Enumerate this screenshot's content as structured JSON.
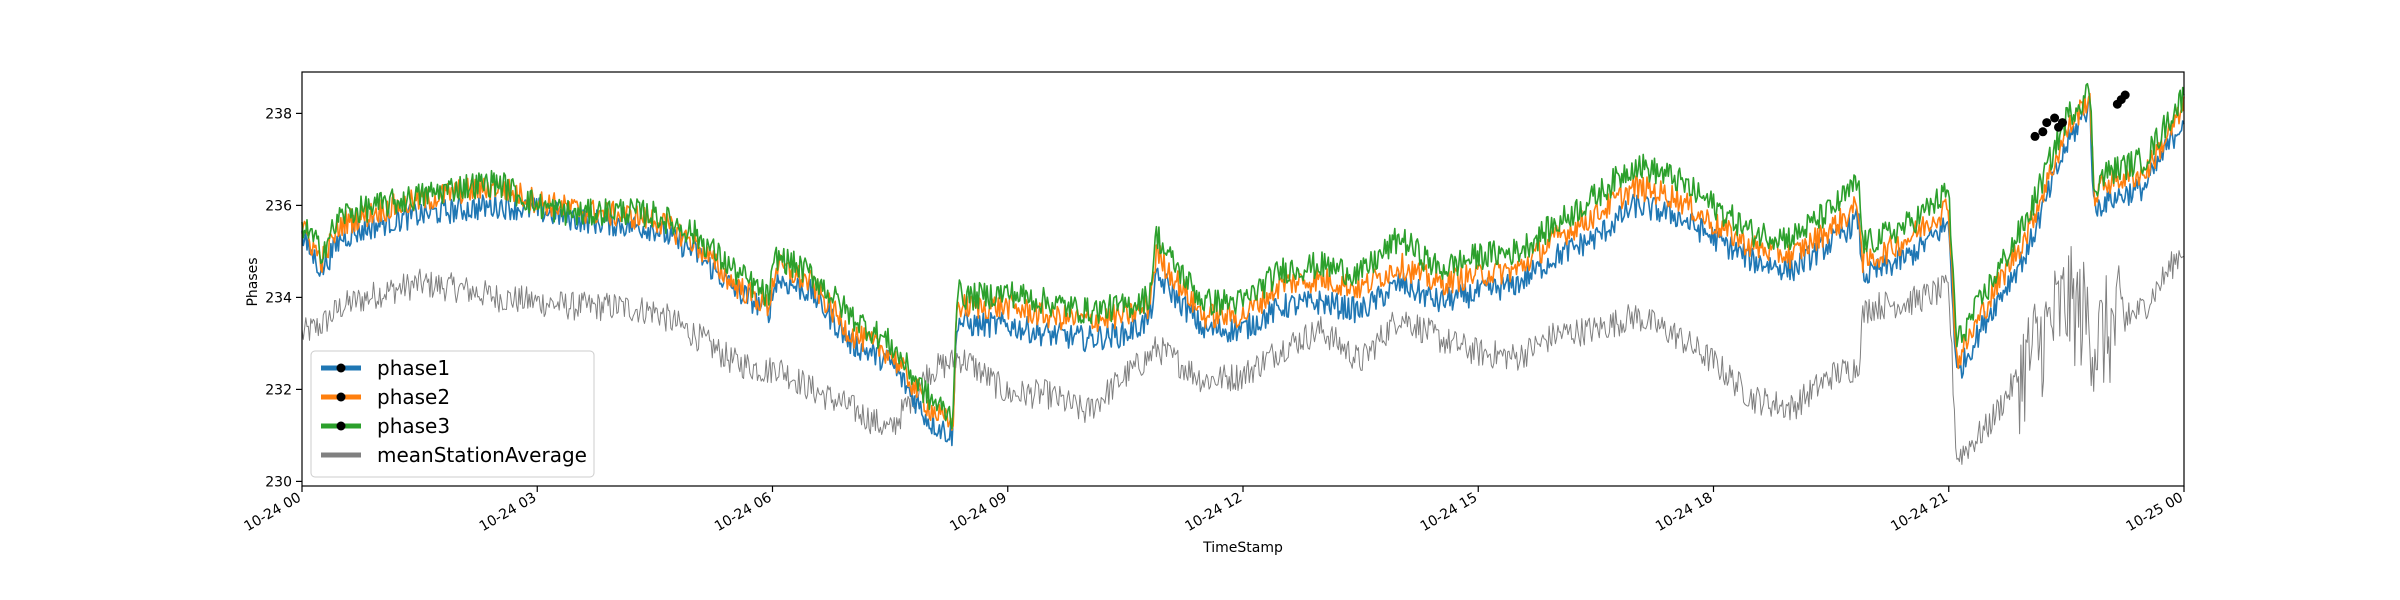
{
  "chart_data": {
    "type": "line",
    "xlabel": "TimeStamp",
    "ylabel": "Phases",
    "ylim": [
      229.9,
      238.9
    ],
    "xlim_hours": [
      0,
      24
    ],
    "grid": false,
    "legend_position": "lower-left",
    "x_ticks": [
      {
        "hour": 0,
        "label": "10-24 00"
      },
      {
        "hour": 3,
        "label": "10-24 03"
      },
      {
        "hour": 6,
        "label": "10-24 06"
      },
      {
        "hour": 9,
        "label": "10-24 09"
      },
      {
        "hour": 12,
        "label": "10-24 12"
      },
      {
        "hour": 15,
        "label": "10-24 15"
      },
      {
        "hour": 18,
        "label": "10-24 18"
      },
      {
        "hour": 21,
        "label": "10-24 21"
      },
      {
        "hour": 24,
        "label": "10-25 00"
      }
    ],
    "y_ticks": [
      230,
      232,
      234,
      236,
      238
    ],
    "x_hours": [
      0,
      0.25,
      0.5,
      1,
      1.5,
      2,
      2.5,
      3,
      3.5,
      4,
      4.5,
      5,
      5.5,
      5.95,
      6.05,
      6.5,
      7,
      7.5,
      8,
      8.3,
      8.35,
      8.5,
      9,
      9.5,
      10,
      10.5,
      10.8,
      10.9,
      11,
      11.5,
      12,
      12.5,
      13,
      13.5,
      14,
      14.5,
      15,
      15.5,
      16,
      16.5,
      17,
      17.5,
      18,
      18.5,
      19,
      19.5,
      19.85,
      19.9,
      20,
      20.5,
      21,
      21.1,
      21.5,
      22,
      22.5,
      22.8,
      22.85,
      23,
      23.5,
      24
    ],
    "series": [
      {
        "name": "phase1",
        "color": "#1f77b4",
        "values": [
          235.3,
          234.6,
          235.3,
          235.6,
          235.8,
          235.9,
          236.0,
          235.9,
          235.7,
          235.6,
          235.5,
          235.0,
          234.2,
          233.7,
          234.4,
          234.1,
          233.0,
          232.6,
          231.3,
          231.0,
          233.5,
          233.4,
          233.4,
          233.2,
          233.1,
          233.2,
          233.5,
          234.4,
          234.3,
          233.3,
          233.3,
          233.8,
          233.9,
          233.7,
          234.3,
          233.9,
          234.1,
          234.3,
          234.9,
          235.3,
          236.0,
          235.8,
          235.3,
          234.8,
          234.6,
          235.2,
          235.7,
          234.5,
          234.5,
          234.9,
          235.6,
          232.3,
          233.6,
          235.0,
          237.3,
          238.2,
          235.9,
          236.1,
          236.4,
          237.9
        ]
      },
      {
        "name": "phase2",
        "color": "#ff7f0e",
        "values": [
          235.5,
          234.8,
          235.6,
          235.9,
          236.1,
          236.3,
          236.4,
          236.1,
          235.9,
          235.8,
          235.7,
          235.2,
          234.3,
          233.8,
          234.7,
          234.3,
          233.2,
          232.8,
          231.6,
          231.2,
          233.8,
          233.8,
          233.8,
          233.6,
          233.5,
          233.6,
          233.8,
          235.0,
          234.7,
          233.6,
          233.6,
          234.3,
          234.4,
          234.2,
          234.7,
          234.3,
          234.5,
          234.6,
          235.3,
          235.8,
          236.4,
          236.2,
          235.6,
          235.1,
          234.9,
          235.5,
          236.0,
          234.8,
          234.8,
          235.3,
          236.0,
          232.6,
          233.9,
          235.4,
          237.6,
          238.4,
          236.2,
          236.5,
          236.7,
          238.1
        ]
      },
      {
        "name": "phase3",
        "color": "#2ca02c",
        "values": [
          235.6,
          235.0,
          235.8,
          236.0,
          236.2,
          236.4,
          236.5,
          236.0,
          235.8,
          235.9,
          235.8,
          235.4,
          234.6,
          234.0,
          234.9,
          234.5,
          233.6,
          233.0,
          231.8,
          231.4,
          234.1,
          234.0,
          234.1,
          233.9,
          233.7,
          233.8,
          234.0,
          235.4,
          235.0,
          233.9,
          233.9,
          234.6,
          234.7,
          234.5,
          235.3,
          234.6,
          234.9,
          235.0,
          235.6,
          236.2,
          236.9,
          236.6,
          236.0,
          235.4,
          235.3,
          235.9,
          236.5,
          235.2,
          235.2,
          235.6,
          236.3,
          233.0,
          234.2,
          235.7,
          237.9,
          238.5,
          236.4,
          236.7,
          237.0,
          238.4
        ]
      },
      {
        "name": "meanStationAverage",
        "color": "#808080",
        "values": [
          233.2,
          233.4,
          233.8,
          234.1,
          234.3,
          234.2,
          234.0,
          233.9,
          233.8,
          233.8,
          233.7,
          233.2,
          232.6,
          232.4,
          232.5,
          232.0,
          231.6,
          231.1,
          232.4,
          232.6,
          232.7,
          232.6,
          231.9,
          231.9,
          231.5,
          232.3,
          232.7,
          232.9,
          232.8,
          232.2,
          232.3,
          232.9,
          233.3,
          232.6,
          233.6,
          233.1,
          232.8,
          232.7,
          233.2,
          233.3,
          233.6,
          233.2,
          232.6,
          231.8,
          231.6,
          232.3,
          232.5,
          233.6,
          233.8,
          233.9,
          234.2,
          230.5,
          231.2,
          232.6,
          233.9,
          233.5,
          233.0,
          233.2,
          233.8,
          235.1
        ]
      }
    ],
    "markers": [
      {
        "series": "phase1",
        "points": [
          [
            22.1,
            237.5
          ],
          [
            22.35,
            237.9
          ],
          [
            23.2,
            238.3
          ]
        ]
      },
      {
        "series": "phase2",
        "points": [
          [
            22.25,
            237.8
          ],
          [
            22.4,
            237.7
          ],
          [
            23.25,
            238.4
          ]
        ]
      },
      {
        "series": "phase3",
        "points": [
          [
            22.2,
            237.6
          ],
          [
            22.45,
            237.8
          ],
          [
            23.15,
            238.2
          ]
        ]
      }
    ],
    "legend": [
      {
        "label": "phase1",
        "color": "#1f77b4",
        "marker": true
      },
      {
        "label": "phase2",
        "color": "#ff7f0e",
        "marker": true
      },
      {
        "label": "phase3",
        "color": "#2ca02c",
        "marker": true
      },
      {
        "label": "meanStationAverage",
        "color": "#808080",
        "marker": false
      }
    ]
  }
}
